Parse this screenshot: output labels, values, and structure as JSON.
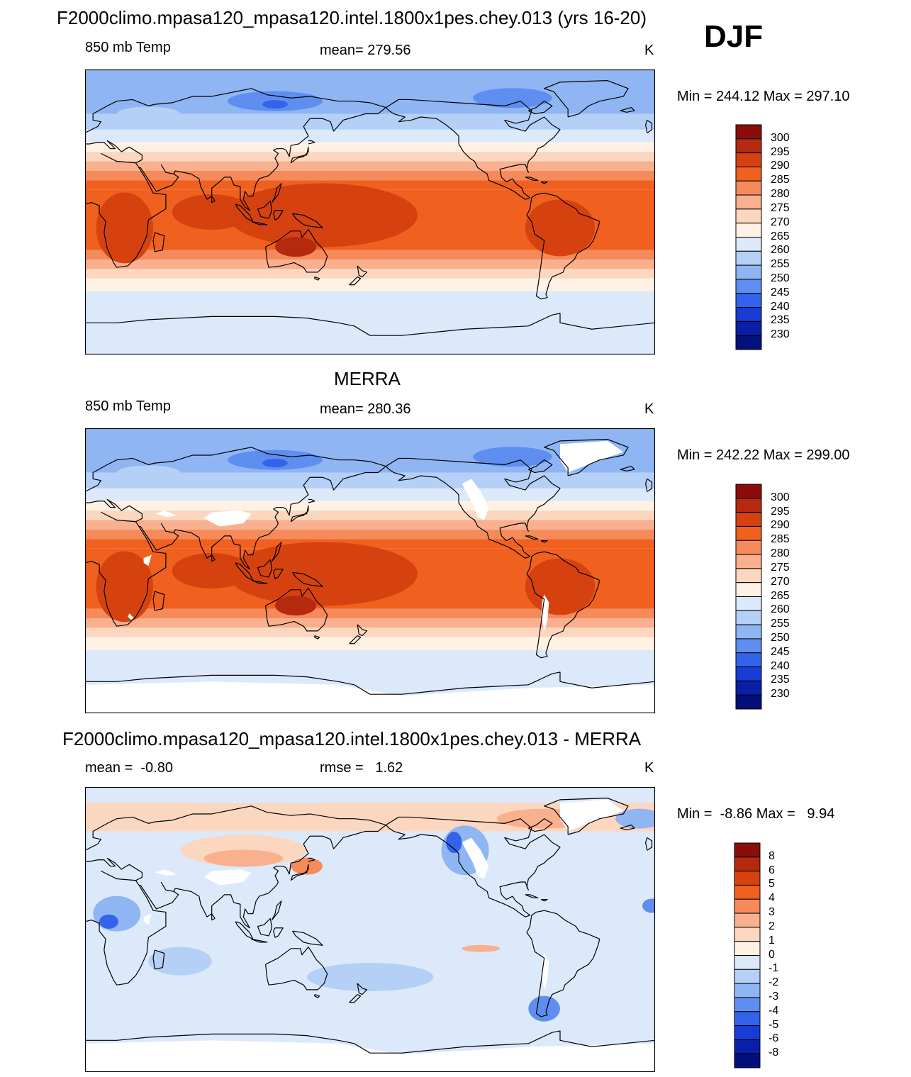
{
  "season": "DJF",
  "panels": [
    {
      "title": "F2000climo.mpasa120_mpasa120.intel.1800x1pes.chey.013 (yrs 16-20)",
      "left_label": "850 mb Temp",
      "center_label": "mean= 279.56",
      "units": "K",
      "minmax": "Min = 244.12 Max = 297.10",
      "colorbar": {
        "labels": [
          "300",
          "295",
          "290",
          "285",
          "280",
          "275",
          "270",
          "265",
          "260",
          "255",
          "250",
          "245",
          "240",
          "235",
          "230"
        ],
        "colors": [
          "#8b0d0b",
          "#b52a0e",
          "#d6420f",
          "#f0601f",
          "#f58a5b",
          "#f9b08f",
          "#fcd7c0",
          "#fff1e4",
          "#dbe9fb",
          "#b5d0f7",
          "#8fb5f3",
          "#5e8ef0",
          "#3263ea",
          "#1a3cd6",
          "#0a1fa8",
          "#03107a"
        ]
      },
      "white_patches": false
    },
    {
      "title": "MERRA",
      "left_label": "850 mb Temp",
      "center_label": "mean= 280.36",
      "units": "K",
      "minmax": "Min = 242.22 Max = 299.00",
      "colorbar": {
        "labels": [
          "300",
          "295",
          "290",
          "285",
          "280",
          "275",
          "270",
          "265",
          "260",
          "255",
          "250",
          "245",
          "240",
          "235",
          "230"
        ],
        "colors": [
          "#8b0d0b",
          "#b52a0e",
          "#d6420f",
          "#f0601f",
          "#f58a5b",
          "#f9b08f",
          "#fcd7c0",
          "#fff1e4",
          "#dbe9fb",
          "#b5d0f7",
          "#8fb5f3",
          "#5e8ef0",
          "#3263ea",
          "#1a3cd6",
          "#0a1fa8",
          "#03107a"
        ]
      },
      "white_patches": true
    },
    {
      "title": "F2000climo.mpasa120_mpasa120.intel.1800x1pes.chey.013 - MERRA",
      "left_label": "mean =  -0.80",
      "center_label": "rmse =   1.62",
      "units": "K",
      "minmax": "Min =  -8.86 Max =   9.94",
      "colorbar": {
        "labels": [
          "8",
          "6",
          "5",
          "4",
          "3",
          "2",
          "1",
          "0",
          "-1",
          "-2",
          "-3",
          "-4",
          "-5",
          "-6",
          "-8"
        ],
        "colors": [
          "#8b0d0b",
          "#b52a0e",
          "#d6420f",
          "#f0601f",
          "#f58a5b",
          "#f9b08f",
          "#fcd7c0",
          "#fff1e4",
          "#dbe9fb",
          "#b5d0f7",
          "#8fb5f3",
          "#5e8ef0",
          "#3263ea",
          "#1a3cd6",
          "#0a1fa8",
          "#03107a"
        ]
      },
      "white_patches": true
    }
  ]
}
